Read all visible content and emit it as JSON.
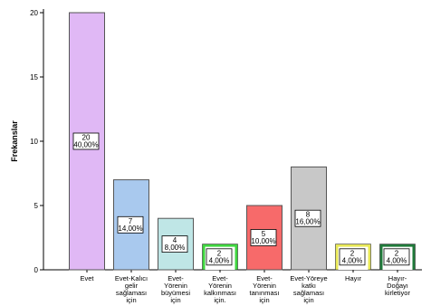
{
  "chart_data": {
    "type": "bar",
    "ylabel": "Frekanslar",
    "xlabel": "",
    "ylim": [
      0,
      20
    ],
    "yticks": [
      "0",
      "5",
      "10",
      "15",
      "20"
    ],
    "grid": false,
    "categories": [
      [
        "Evet"
      ],
      [
        "Evet-Kalıcı",
        "gelir",
        "sağlaması",
        "için"
      ],
      [
        "Evet-",
        "Yörenin",
        "büyümesi",
        "için"
      ],
      [
        "Evet-",
        "Yörenin",
        "kalkınması",
        "için."
      ],
      [
        "Evet-",
        "Yörenin",
        "tanınması",
        "için"
      ],
      [
        "Evet-Yöreye",
        "katkı",
        "sağlaması",
        "için"
      ],
      [
        "Hayır"
      ],
      [
        "Hayır-",
        "Doğayı",
        "kirletiyor"
      ]
    ],
    "values": [
      20,
      7,
      4,
      2,
      5,
      8,
      2,
      2
    ],
    "data_labels": [
      [
        "20",
        "40,00%"
      ],
      [
        "7",
        "14,00%"
      ],
      [
        "4",
        "8,00%"
      ],
      [
        "2",
        "4,00%"
      ],
      [
        "5",
        "10,00%"
      ],
      [
        "8",
        "16,00%"
      ],
      [
        "2",
        "4,00%"
      ],
      [
        "2",
        "4,00%"
      ]
    ],
    "fill_colors": [
      "#e0b8f5",
      "#a9c9ee",
      "#bfe6e6",
      "#ffffff",
      "#f76a6a",
      "#c8c8c8",
      "#ffffff",
      "#ffffff"
    ],
    "outline_colors": [
      "#555555",
      "#555555",
      "#555555",
      "#3ed63e",
      "#555555",
      "#555555",
      "#e8e856",
      "#1f7a3a"
    ]
  }
}
